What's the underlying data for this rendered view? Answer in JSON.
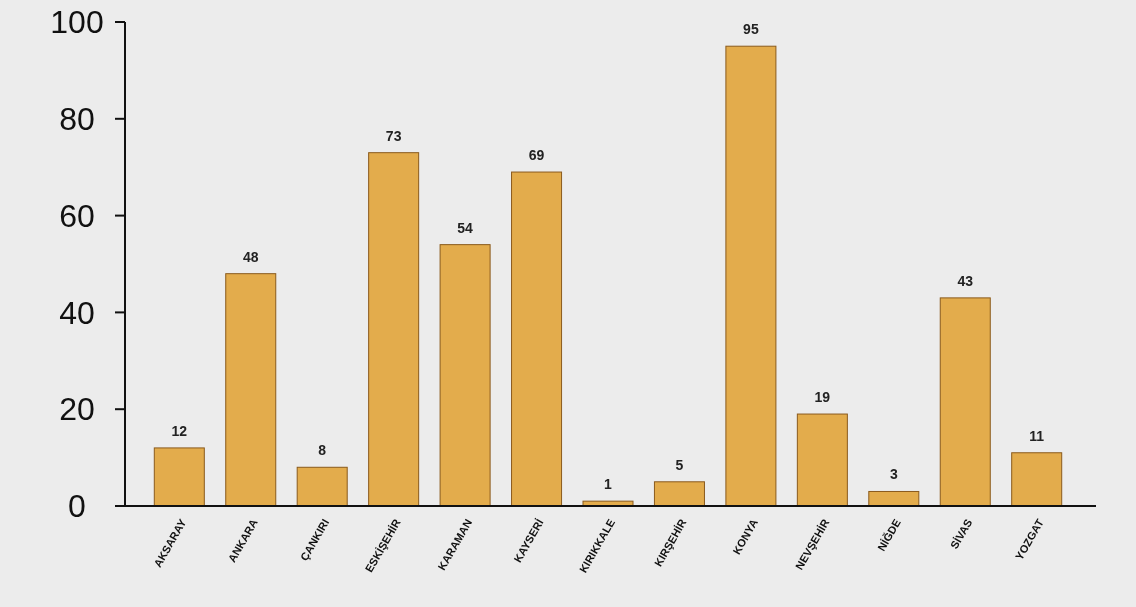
{
  "chart_data": {
    "type": "bar",
    "categories": [
      "AKSARAY",
      "ANKARA",
      "ÇANKIRI",
      "ESKİŞEHİR",
      "KARAMAN",
      "KAYSERİ",
      "KIRIKKALE",
      "KIRŞEHİR",
      "KONYA",
      "NEVŞEHİR",
      "NİĞDE",
      "SİVAS",
      "YOZGAT"
    ],
    "values": [
      12,
      48,
      8,
      73,
      54,
      69,
      1,
      5,
      95,
      19,
      3,
      43,
      11
    ],
    "color": "#e3ac4c",
    "ylim": [
      0,
      100
    ],
    "yticks": [
      0,
      20,
      40,
      60,
      80,
      100
    ],
    "data_labels": true,
    "grid": false
  }
}
